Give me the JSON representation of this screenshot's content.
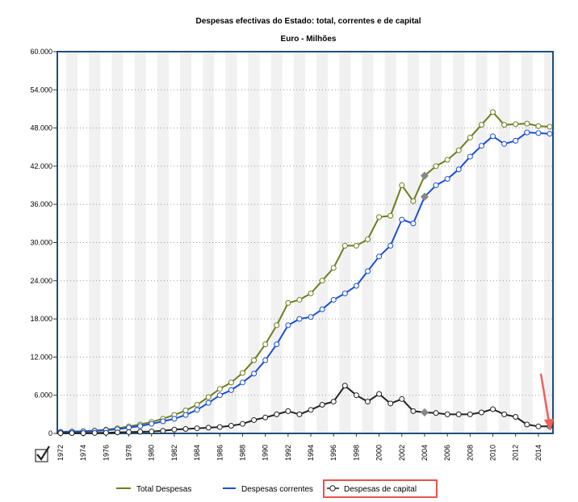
{
  "chart_data": {
    "type": "line",
    "title": "Despesas efectivas do Estado: total, correntes e de capital",
    "subtitle": "Euro - Milhões",
    "xlim": [
      1972,
      2015
    ],
    "ylim": [
      0,
      60000
    ],
    "y_tick_labels": [
      "0",
      "6.000",
      "12.000",
      "18.000",
      "24.000",
      "30.000",
      "36.000",
      "42.000",
      "48.000",
      "54.000",
      "60.000"
    ],
    "x_tick_labels": [
      "1972",
      "1974",
      "1976",
      "1978",
      "1980",
      "1982",
      "1984",
      "1986",
      "1988",
      "1990",
      "1992",
      "1994",
      "1996",
      "1998",
      "2000",
      "2002",
      "2004",
      "2006",
      "2008",
      "2010",
      "2012",
      "2014"
    ],
    "grid": true,
    "legend_position": "bottom",
    "x": [
      1972,
      1973,
      1974,
      1975,
      1976,
      1977,
      1978,
      1979,
      1980,
      1981,
      1982,
      1983,
      1984,
      1985,
      1986,
      1987,
      1988,
      1989,
      1990,
      1991,
      1992,
      1993,
      1994,
      1995,
      1996,
      1997,
      1998,
      1999,
      2000,
      2001,
      2002,
      2003,
      2004,
      2005,
      2006,
      2007,
      2008,
      2009,
      2010,
      2011,
      2012,
      2013,
      2014,
      2015
    ],
    "series": [
      {
        "name": "Total Despesas",
        "color": "#6b7f1f",
        "values": [
          250,
          300,
          350,
          450,
          600,
          800,
          1100,
          1400,
          1800,
          2300,
          2900,
          3600,
          4500,
          5700,
          7000,
          8000,
          9500,
          11500,
          14000,
          17000,
          20500,
          21000,
          22000,
          24000,
          26000,
          29500,
          29500,
          30500,
          34000,
          34200,
          39000,
          36500,
          40500,
          42000,
          43000,
          44500,
          46500,
          48500,
          50500,
          48500,
          48600,
          48700,
          48300,
          48200
        ]
      },
      {
        "name": "Despesas correntes",
        "color": "#1a4fd6",
        "values": [
          200,
          250,
          300,
          380,
          500,
          650,
          900,
          1150,
          1500,
          1900,
          2300,
          2900,
          3700,
          4800,
          6000,
          6800,
          8000,
          9400,
          11500,
          14000,
          17000,
          18000,
          18300,
          19500,
          21000,
          22000,
          23200,
          25500,
          27800,
          29500,
          33600,
          33000,
          37200,
          39000,
          40000,
          41500,
          43500,
          45200,
          46700,
          45500,
          46000,
          47300,
          47200,
          47100
        ]
      },
      {
        "name": "Despesas de capital",
        "color": "#222222",
        "values": [
          50,
          50,
          50,
          70,
          100,
          150,
          200,
          250,
          300,
          400,
          600,
          700,
          800,
          900,
          1000,
          1200,
          1500,
          2100,
          2500,
          3000,
          3500,
          3000,
          3700,
          4500,
          5000,
          7500,
          6000,
          5000,
          6200,
          4700,
          5400,
          3500,
          3300,
          3200,
          3000,
          3000,
          3000,
          3300,
          3800,
          3000,
          2600,
          1400,
          1100,
          1100
        ]
      }
    ],
    "highlighted_point": {
      "series": "Despesas correntes",
      "x": 2004
    }
  },
  "legend": {
    "items": [
      "Total Despesas",
      "Despesas correntes",
      "Despesas de capital"
    ]
  },
  "annotation": {
    "arrow_color": "#f0605a",
    "legend_box_color": "#e8554e"
  }
}
